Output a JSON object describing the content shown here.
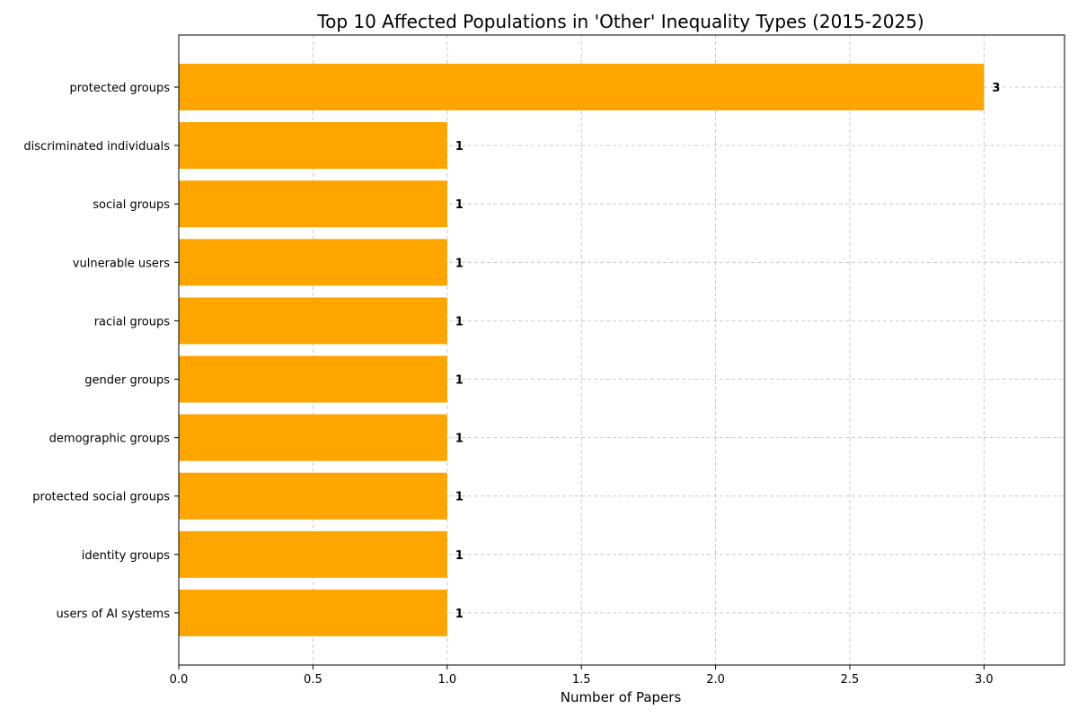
{
  "chart_data": {
    "type": "bar",
    "orientation": "horizontal",
    "title": "Top 10 Affected Populations in 'Other' Inequality Types (2015-2025)",
    "xlabel": "Number of Papers",
    "ylabel": "",
    "categories": [
      "protected groups",
      "discriminated individuals",
      "social groups",
      "vulnerable users",
      "racial groups",
      "gender groups",
      "demographic groups",
      "protected social groups",
      "identity groups",
      "users of AI systems"
    ],
    "values": [
      3,
      1,
      1,
      1,
      1,
      1,
      1,
      1,
      1,
      1
    ],
    "data_labels": [
      "3",
      "1",
      "1",
      "1",
      "1",
      "1",
      "1",
      "1",
      "1",
      "1"
    ],
    "xlim": [
      0,
      3.3
    ],
    "xticks": [
      0.0,
      0.5,
      1.0,
      1.5,
      2.0,
      2.5,
      3.0
    ],
    "xtick_labels": [
      "0.0",
      "0.5",
      "1.0",
      "1.5",
      "2.0",
      "2.5",
      "3.0"
    ],
    "grid": true,
    "bar_color": "#FFA500"
  }
}
